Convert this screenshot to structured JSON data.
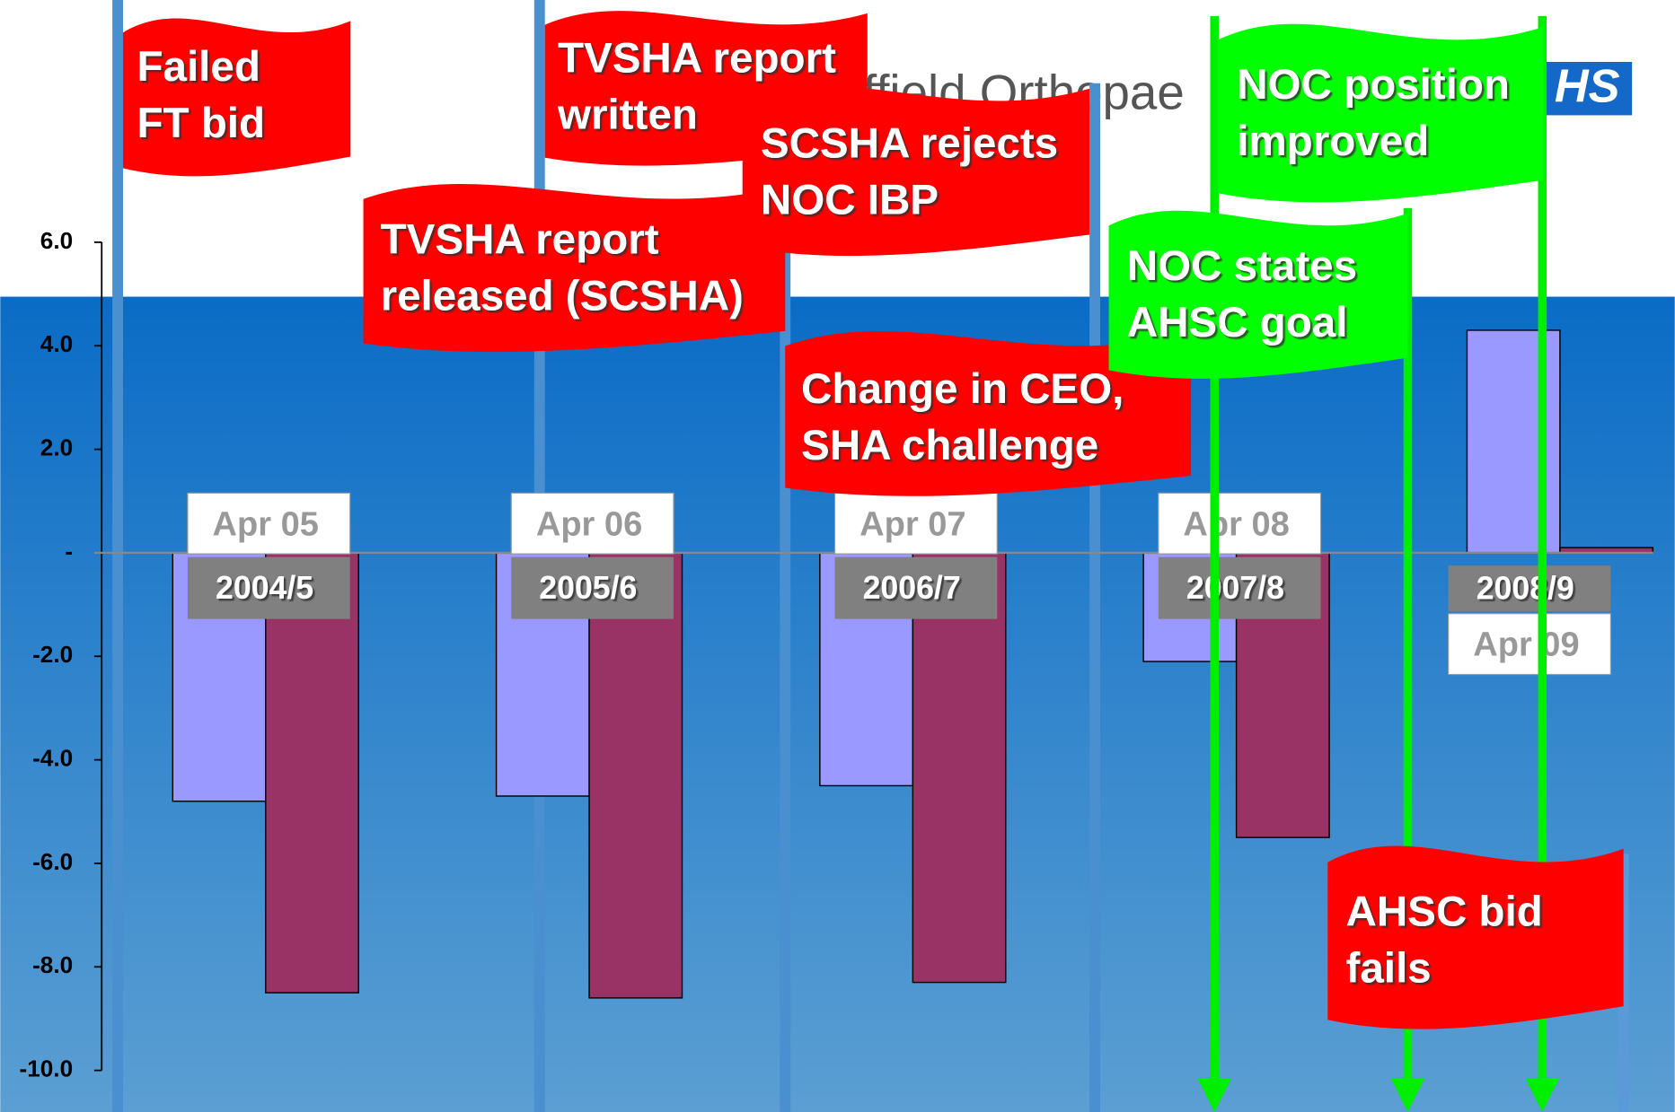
{
  "header": {
    "text": "ffield Orthopae",
    "logo": "HS"
  },
  "chart_data": {
    "type": "bar",
    "categories": [
      "2004/5",
      "2005/6",
      "2006/7",
      "2007/8",
      "2008/9"
    ],
    "series": [
      {
        "color": "#9999ff",
        "values": [
          -4.8,
          -4.7,
          -4.5,
          -2.1,
          4.3
        ]
      },
      {
        "color": "#993366",
        "values": [
          -8.5,
          -8.6,
          -8.3,
          -5.5,
          0.1
        ]
      }
    ],
    "ylim": [
      -10,
      6
    ],
    "yticks": [
      {
        "value": 6,
        "label": "6.0"
      },
      {
        "value": 4,
        "label": "4.0"
      },
      {
        "value": 2,
        "label": "2.0"
      },
      {
        "value": 0,
        "label": "-"
      },
      {
        "value": -2,
        "label": "-2.0"
      },
      {
        "value": -4,
        "label": "-4.0"
      },
      {
        "value": -6,
        "label": "-6.0"
      },
      {
        "value": -8,
        "label": "-8.0"
      },
      {
        "value": -10,
        "label": "-10.0"
      }
    ],
    "date_labels": [
      "Apr 05",
      "Apr 06",
      "Apr 07",
      "Apr 08",
      "Apr 09"
    ],
    "annotations": [
      {
        "lines": [
          "Failed",
          "FT bid"
        ],
        "color": "#ff0000"
      },
      {
        "lines": [
          "TVSHA report",
          "written"
        ],
        "color": "#ff0000"
      },
      {
        "lines": [
          "TVSHA report",
          "released (SCSHA)"
        ],
        "color": "#ff0000"
      },
      {
        "lines": [
          "SCSHA rejects",
          "NOC IBP"
        ],
        "color": "#ff0000"
      },
      {
        "lines": [
          "Change in CEO,",
          "SHA challenge"
        ],
        "color": "#ff0000"
      },
      {
        "lines": [
          "NOC position",
          "improved"
        ],
        "color": "#00ff00"
      },
      {
        "lines": [
          "NOC states",
          "AHSC goal"
        ],
        "color": "#00ff00"
      },
      {
        "lines": [
          "AHSC bid",
          "fails"
        ],
        "color": "#ff0000"
      }
    ]
  }
}
